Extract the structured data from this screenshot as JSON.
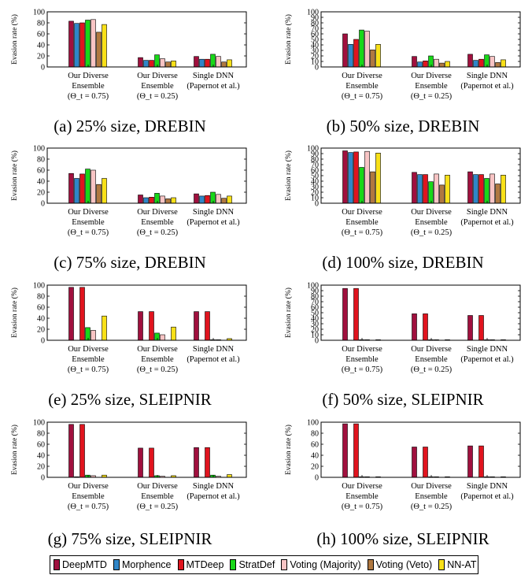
{
  "series_names": [
    "DeepMTD",
    "Morphence",
    "MTDeep",
    "StratDef",
    "Voting (Majority)",
    "Voting (Veto)",
    "NN-AT"
  ],
  "colors": [
    "#a0103e",
    "#2f86c8",
    "#e0141e",
    "#18d818",
    "#f8c4c4",
    "#b07840",
    "#f8e018"
  ],
  "categories": [
    [
      "Our Diverse",
      "Ensemble",
      "(Θ_t = 0.75)"
    ],
    [
      "Our Diverse",
      "Ensemble",
      "(Θ_t = 0.25)"
    ],
    [
      "Single DNN",
      "(Papernot et al.)"
    ]
  ],
  "chart_data": [
    {
      "type": "bar",
      "caption": "(a) 25% size, DREBIN",
      "ylabel": "Evasion rate (%)",
      "ylim": [
        0,
        100
      ],
      "yticks": [
        0,
        20,
        40,
        60,
        80,
        100
      ],
      "series": [
        {
          "name": "DeepMTD",
          "values": [
            83,
            17,
            19
          ]
        },
        {
          "name": "Morphence",
          "values": [
            79,
            12,
            14
          ]
        },
        {
          "name": "MTDeep",
          "values": [
            80,
            12,
            14
          ]
        },
        {
          "name": "StratDef",
          "values": [
            85,
            22,
            23
          ]
        },
        {
          "name": "Voting (Majority)",
          "values": [
            86,
            15,
            19
          ]
        },
        {
          "name": "Voting (Veto)",
          "values": [
            63,
            9,
            9
          ]
        },
        {
          "name": "NN-AT",
          "values": [
            77,
            11,
            13
          ]
        }
      ]
    },
    {
      "type": "bar",
      "caption": "(b) 50% size, DREBIN",
      "ylabel": "Evasion rate (%)",
      "ylim": [
        0,
        100
      ],
      "yticks": [
        0,
        10,
        20,
        30,
        40,
        50,
        60,
        70,
        80,
        90,
        100
      ],
      "series": [
        {
          "name": "DeepMTD",
          "values": [
            60,
            19,
            23
          ]
        },
        {
          "name": "Morphence",
          "values": [
            41,
            9,
            12
          ]
        },
        {
          "name": "MTDeep",
          "values": [
            50,
            11,
            14
          ]
        },
        {
          "name": "StratDef",
          "values": [
            67,
            20,
            22
          ]
        },
        {
          "name": "Voting (Majority)",
          "values": [
            65,
            14,
            19
          ]
        },
        {
          "name": "Voting (Veto)",
          "values": [
            31,
            7,
            8
          ]
        },
        {
          "name": "NN-AT",
          "values": [
            41,
            10,
            13
          ]
        }
      ]
    },
    {
      "type": "bar",
      "caption": "(c) 75% size, DREBIN",
      "ylabel": "Evasion rate (%)",
      "ylim": [
        0,
        100
      ],
      "yticks": [
        0,
        20,
        40,
        60,
        80,
        100
      ],
      "series": [
        {
          "name": "DeepMTD",
          "values": [
            54,
            15,
            17
          ]
        },
        {
          "name": "Morphence",
          "values": [
            45,
            10,
            13
          ]
        },
        {
          "name": "MTDeep",
          "values": [
            53,
            11,
            14
          ]
        },
        {
          "name": "StratDef",
          "values": [
            62,
            18,
            20
          ]
        },
        {
          "name": "Voting (Majority)",
          "values": [
            60,
            13,
            16
          ]
        },
        {
          "name": "Voting (Veto)",
          "values": [
            34,
            8,
            9
          ]
        },
        {
          "name": "NN-AT",
          "values": [
            45,
            10,
            13
          ]
        }
      ]
    },
    {
      "type": "bar",
      "caption": "(d) 100% size, DREBIN",
      "ylabel": "Evasion rate (%)",
      "ylim": [
        0,
        100
      ],
      "yticks": [
        0,
        10,
        20,
        30,
        40,
        50,
        60,
        70,
        80,
        90,
        100
      ],
      "series": [
        {
          "name": "DeepMTD",
          "values": [
            95,
            56,
            57
          ]
        },
        {
          "name": "Morphence",
          "values": [
            92,
            52,
            52
          ]
        },
        {
          "name": "MTDeep",
          "values": [
            93,
            52,
            52
          ]
        },
        {
          "name": "StratDef",
          "values": [
            65,
            39,
            45
          ]
        },
        {
          "name": "Voting (Majority)",
          "values": [
            94,
            53,
            53
          ]
        },
        {
          "name": "Voting (Veto)",
          "values": [
            57,
            33,
            35
          ]
        },
        {
          "name": "NN-AT",
          "values": [
            91,
            51,
            51
          ]
        }
      ]
    },
    {
      "type": "bar",
      "caption": "(e) 25% size, SLEIPNIR",
      "ylabel": "Evasion rate (%)",
      "ylim": [
        0,
        100
      ],
      "yticks": [
        0,
        20,
        40,
        60,
        80,
        100
      ],
      "series": [
        {
          "name": "DeepMTD",
          "values": [
            96,
            52,
            52
          ]
        },
        {
          "name": "Morphence",
          "values": [
            0,
            0,
            0
          ]
        },
        {
          "name": "MTDeep",
          "values": [
            96,
            52,
            52
          ]
        },
        {
          "name": "StratDef",
          "values": [
            23,
            13,
            1
          ]
        },
        {
          "name": "Voting (Majority)",
          "values": [
            18,
            10,
            1
          ]
        },
        {
          "name": "Voting (Veto)",
          "values": [
            0,
            0,
            0
          ]
        },
        {
          "name": "NN-AT",
          "values": [
            44,
            24,
            3
          ]
        }
      ]
    },
    {
      "type": "bar",
      "caption": "(f) 50% size, SLEIPNIR",
      "ylabel": "Evasion rate (%)",
      "ylim": [
        0,
        100
      ],
      "yticks": [
        0,
        10,
        20,
        30,
        40,
        50,
        60,
        70,
        80,
        90,
        100
      ],
      "series": [
        {
          "name": "DeepMTD",
          "values": [
            94,
            48,
            45
          ]
        },
        {
          "name": "Morphence",
          "values": [
            0,
            0,
            0
          ]
        },
        {
          "name": "MTDeep",
          "values": [
            94,
            48,
            45
          ]
        },
        {
          "name": "StratDef",
          "values": [
            1,
            1,
            1
          ]
        },
        {
          "name": "Voting (Majority)",
          "values": [
            1,
            1,
            1
          ]
        },
        {
          "name": "Voting (Veto)",
          "values": [
            0,
            0,
            0
          ]
        },
        {
          "name": "NN-AT",
          "values": [
            1,
            1,
            1
          ]
        }
      ]
    },
    {
      "type": "bar",
      "caption": "(g) 75% size, SLEIPNIR",
      "ylabel": "Evasion rate (%)",
      "ylim": [
        0,
        100
      ],
      "yticks": [
        0,
        20,
        40,
        60,
        80,
        100
      ],
      "series": [
        {
          "name": "DeepMTD",
          "values": [
            96,
            53,
            54
          ]
        },
        {
          "name": "Morphence",
          "values": [
            1,
            0,
            0
          ]
        },
        {
          "name": "MTDeep",
          "values": [
            96,
            53,
            54
          ]
        },
        {
          "name": "StratDef",
          "values": [
            4,
            3,
            4
          ]
        },
        {
          "name": "Voting (Majority)",
          "values": [
            3,
            2,
            2
          ]
        },
        {
          "name": "Voting (Veto)",
          "values": [
            0,
            0,
            0
          ]
        },
        {
          "name": "NN-AT",
          "values": [
            4,
            3,
            5
          ]
        }
      ]
    },
    {
      "type": "bar",
      "caption": "(h) 100% size, SLEIPNIR",
      "ylabel": "Evasion rate (%)",
      "ylim": [
        0,
        100
      ],
      "yticks": [
        0,
        20,
        40,
        60,
        80,
        100
      ],
      "series": [
        {
          "name": "DeepMTD",
          "values": [
            97,
            55,
            57
          ]
        },
        {
          "name": "Morphence",
          "values": [
            0,
            0,
            0
          ]
        },
        {
          "name": "MTDeep",
          "values": [
            97,
            55,
            57
          ]
        },
        {
          "name": "StratDef",
          "values": [
            1,
            1,
            1
          ]
        },
        {
          "name": "Voting (Majority)",
          "values": [
            1,
            1,
            1
          ]
        },
        {
          "name": "Voting (Veto)",
          "values": [
            0,
            0,
            0
          ]
        },
        {
          "name": "NN-AT",
          "values": [
            1,
            1,
            1
          ]
        }
      ]
    }
  ]
}
